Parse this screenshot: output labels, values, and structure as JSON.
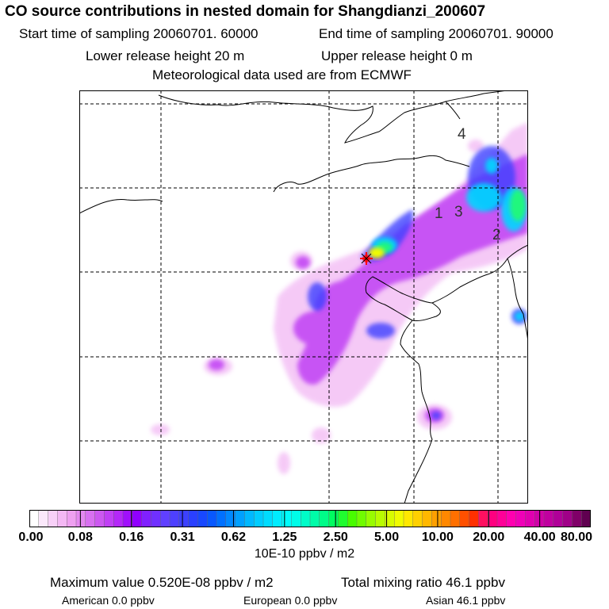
{
  "header": {
    "title": "CO  source contributions in nested domain for Shangdianzi_200607",
    "start_label": "Start time of sampling 20060701. 60000",
    "end_label": "End time of sampling 20060701. 90000",
    "lower_height": "Lower release height   20 m",
    "upper_height": "Upper release height    0 m",
    "met_data": "Meteorological data used are from ECMWF"
  },
  "map": {
    "region_labels": [
      "4",
      "1",
      "3",
      "2"
    ],
    "colors": {
      "coast": "#000000",
      "grid": "#000000",
      "receptor_marker": "#ff0000"
    }
  },
  "colorbar": {
    "ticks": [
      "0.00",
      "0.08",
      "0.16",
      "0.31",
      "0.62",
      "1.25",
      "2.50",
      "5.00",
      "10.00",
      "20.00",
      "40.00",
      "80.00"
    ],
    "units": "10E-10 ppbv / m2",
    "colors": [
      "#ffffff",
      "#fbe8fb",
      "#f8d0f8",
      "#f4b8f4",
      "#eea0f0",
      "#e488f0",
      "#d870f0",
      "#cc58f0",
      "#c040f4",
      "#b428f8",
      "#a010fc",
      "#9000ff",
      "#8020ff",
      "#7030ff",
      "#6040ff",
      "#4e40ff",
      "#3c40ff",
      "#2a40ff",
      "#1848ff",
      "#0858ff",
      "#0070ff",
      "#0088ff",
      "#00a0ff",
      "#00b8ff",
      "#00ccff",
      "#00dcff",
      "#00ecff",
      "#00fcfc",
      "#00fce8",
      "#00fcc8",
      "#00fca8",
      "#00fc88",
      "#00fc60",
      "#20fc30",
      "#48fc00",
      "#70fc00",
      "#98fc00",
      "#b8fc00",
      "#d8fc00",
      "#f0fc00",
      "#ffe800",
      "#ffd000",
      "#ffb800",
      "#ffa000",
      "#ff8800",
      "#ff7000",
      "#ff5000",
      "#ff3000",
      "#ff1060",
      "#ff0080",
      "#ff0098",
      "#ff00b0",
      "#f000b8",
      "#e000b0",
      "#d000a8",
      "#c000a0",
      "#b00098",
      "#a00088",
      "#800068",
      "#600050"
    ]
  },
  "footer": {
    "max_value": "Maximum value  0.520E-08 ppbv / m2",
    "total_mixing": "Total mixing ratio      46.1 ppbv",
    "american": "American        0.0 ppbv",
    "european": "European        0.0 ppbv",
    "asian": "Asian      46.1 ppbv"
  }
}
